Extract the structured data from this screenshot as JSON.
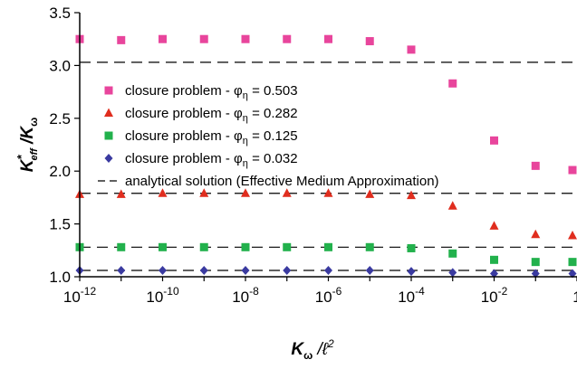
{
  "chart_data": {
    "type": "scatter",
    "x_scale": "log",
    "xlim": [
      1e-12,
      1
    ],
    "ylim": [
      1.0,
      3.5
    ],
    "x_ticks": [
      {
        "value": 1e-12,
        "base": "10",
        "exp": "-12"
      },
      {
        "value": 1e-10,
        "base": "10",
        "exp": "-10"
      },
      {
        "value": 1e-08,
        "base": "10",
        "exp": "-8"
      },
      {
        "value": 1e-06,
        "base": "10",
        "exp": "-6"
      },
      {
        "value": 0.0001,
        "base": "10",
        "exp": "-4"
      },
      {
        "value": 0.01,
        "base": "10",
        "exp": "-2"
      },
      {
        "value": 1,
        "base": "1",
        "exp": ""
      }
    ],
    "y_ticks": [
      "1.0",
      "1.5",
      "2.0",
      "2.5",
      "3.0",
      "3.5"
    ],
    "xlabel": {
      "main": "K",
      "sub": "ω",
      "rest": " /ℓ",
      "sup": "2"
    },
    "ylabel": {
      "main": "K",
      "sup": "*",
      "sub": "eff",
      "rest": " /K",
      "sub2": "ω"
    },
    "grid": false,
    "legend_position": "left-center",
    "series": [
      {
        "name": "closure problem - φη = 0.503",
        "legend_prefix": "closure problem - φ",
        "legend_sub": "η",
        "legend_suffix": " = 0.503",
        "marker": "square",
        "color": "#e8459c",
        "x": [
          1e-12,
          1e-11,
          1e-10,
          1e-09,
          1e-08,
          1e-07,
          1e-06,
          1e-05,
          0.0001,
          0.001,
          0.01,
          0.1,
          1
        ],
        "y": [
          3.25,
          3.24,
          3.25,
          3.25,
          3.25,
          3.25,
          3.25,
          3.23,
          3.15,
          2.83,
          2.29,
          2.05,
          2.01
        ]
      },
      {
        "name": "closure problem - φη = 0.282",
        "legend_prefix": "closure problem - φ",
        "legend_sub": "η",
        "legend_suffix": " = 0.282",
        "marker": "triangle",
        "color": "#e02d1e",
        "x": [
          1e-12,
          1e-11,
          1e-10,
          1e-09,
          1e-08,
          1e-07,
          1e-06,
          1e-05,
          0.0001,
          0.001,
          0.01,
          0.1,
          1
        ],
        "y": [
          1.78,
          1.78,
          1.79,
          1.79,
          1.79,
          1.79,
          1.79,
          1.78,
          1.77,
          1.67,
          1.48,
          1.4,
          1.39
        ]
      },
      {
        "name": "closure problem - φη = 0.125",
        "legend_prefix": "closure problem - φ",
        "legend_sub": "η",
        "legend_suffix": " = 0.125",
        "marker": "square",
        "color": "#22b14c",
        "x": [
          1e-12,
          1e-11,
          1e-10,
          1e-09,
          1e-08,
          1e-07,
          1e-06,
          1e-05,
          0.0001,
          0.001,
          0.01,
          0.1,
          1
        ],
        "y": [
          1.28,
          1.28,
          1.28,
          1.28,
          1.28,
          1.28,
          1.28,
          1.28,
          1.27,
          1.22,
          1.16,
          1.14,
          1.14
        ]
      },
      {
        "name": "closure problem - φη = 0.032",
        "legend_prefix": "closure problem - φ",
        "legend_sub": "η",
        "legend_suffix": " = 0.032",
        "marker": "diamond",
        "color": "#3a3aa0",
        "x": [
          1e-12,
          1e-11,
          1e-10,
          1e-09,
          1e-08,
          1e-07,
          1e-06,
          1e-05,
          0.0001,
          0.001,
          0.01,
          0.1,
          1
        ],
        "y": [
          1.06,
          1.06,
          1.06,
          1.06,
          1.06,
          1.06,
          1.06,
          1.06,
          1.05,
          1.04,
          1.03,
          1.03,
          1.03
        ]
      }
    ],
    "reference_lines": {
      "name": "analytical solution (Effective Medium Approximation)",
      "style": "dashed",
      "color": "#000000",
      "y": [
        3.03,
        1.79,
        1.28,
        1.06
      ]
    }
  }
}
